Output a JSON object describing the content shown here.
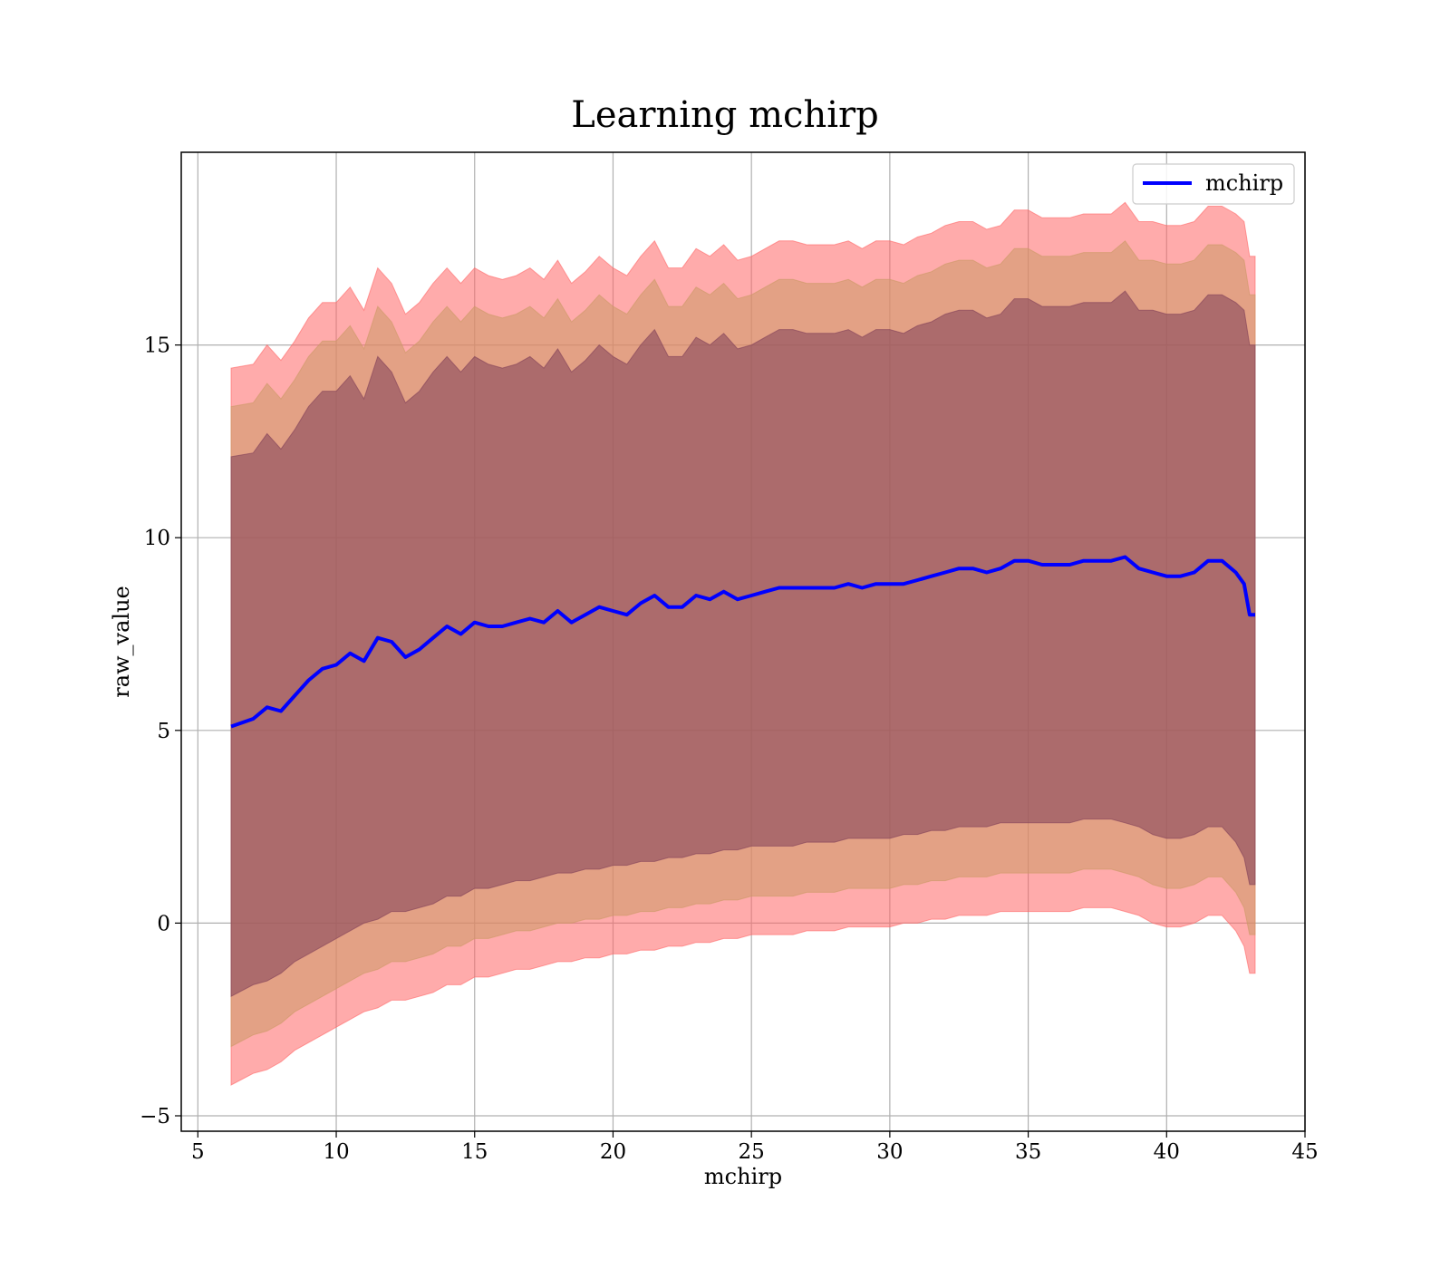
{
  "chart_data": {
    "type": "area",
    "title": "Learning mchirp",
    "xlabel": "mchirp",
    "ylabel": "raw_value",
    "xlim": [
      4.4,
      45
    ],
    "ylim": [
      -5.4,
      20
    ],
    "xticks": [
      5,
      10,
      15,
      20,
      25,
      30,
      35,
      40,
      45
    ],
    "yticks": [
      -5,
      0,
      5,
      10,
      15
    ],
    "xtick_labels": [
      "5",
      "10",
      "15",
      "20",
      "25",
      "30",
      "35",
      "40",
      "45"
    ],
    "ytick_labels": [
      "−5",
      "0",
      "5",
      "10",
      "15"
    ],
    "grid": true,
    "legend": {
      "placement": "top-right",
      "entries": [
        {
          "name": "mchirp",
          "color": "#0000ff"
        }
      ]
    },
    "x": [
      6.2,
      7.0,
      7.5,
      8.0,
      8.5,
      9.0,
      9.5,
      10.0,
      10.5,
      11.0,
      11.5,
      12.0,
      12.5,
      13.0,
      13.5,
      14.0,
      14.5,
      15.0,
      15.5,
      16.0,
      16.5,
      17.0,
      17.5,
      18.0,
      18.5,
      19.0,
      19.5,
      20.0,
      20.5,
      21.0,
      21.5,
      22.0,
      22.5,
      23.0,
      23.5,
      24.0,
      24.5,
      25.0,
      25.5,
      26.0,
      26.5,
      27.0,
      27.5,
      28.0,
      28.5,
      29.0,
      29.5,
      30.0,
      30.5,
      31.0,
      31.5,
      32.0,
      32.5,
      33.0,
      33.5,
      34.0,
      34.5,
      35.0,
      35.5,
      36.0,
      36.5,
      37.0,
      37.5,
      38.0,
      38.5,
      39.0,
      39.5,
      40.0,
      40.5,
      41.0,
      41.5,
      42.0,
      42.5,
      42.8,
      43.0,
      43.2
    ],
    "series": [
      {
        "name": "mchirp",
        "role": "mean",
        "color": "#0000ff",
        "values": [
          5.1,
          5.3,
          5.6,
          5.5,
          5.9,
          6.3,
          6.6,
          6.7,
          7.0,
          6.8,
          7.4,
          7.3,
          6.9,
          7.1,
          7.4,
          7.7,
          7.5,
          7.8,
          7.7,
          7.7,
          7.8,
          7.9,
          7.8,
          8.1,
          7.8,
          8.0,
          8.2,
          8.1,
          8.0,
          8.3,
          8.5,
          8.2,
          8.2,
          8.5,
          8.4,
          8.6,
          8.4,
          8.5,
          8.6,
          8.7,
          8.7,
          8.7,
          8.7,
          8.7,
          8.8,
          8.7,
          8.8,
          8.8,
          8.8,
          8.9,
          9.0,
          9.1,
          9.2,
          9.2,
          9.1,
          9.2,
          9.4,
          9.4,
          9.3,
          9.3,
          9.3,
          9.4,
          9.4,
          9.4,
          9.5,
          9.2,
          9.1,
          9.0,
          9.0,
          9.1,
          9.4,
          9.4,
          9.1,
          8.8,
          8.0,
          8.0
        ]
      }
    ],
    "bands": [
      {
        "level": "outer",
        "color": "#ff6666",
        "lower": [
          -4.2,
          -3.9,
          -3.8,
          -3.6,
          -3.3,
          -3.1,
          -2.9,
          -2.7,
          -2.5,
          -2.3,
          -2.2,
          -2.0,
          -2.0,
          -1.9,
          -1.8,
          -1.6,
          -1.6,
          -1.4,
          -1.4,
          -1.3,
          -1.2,
          -1.2,
          -1.1,
          -1.0,
          -1.0,
          -0.9,
          -0.9,
          -0.8,
          -0.8,
          -0.7,
          -0.7,
          -0.6,
          -0.6,
          -0.5,
          -0.5,
          -0.4,
          -0.4,
          -0.3,
          -0.3,
          -0.3,
          -0.3,
          -0.2,
          -0.2,
          -0.2,
          -0.1,
          -0.1,
          -0.1,
          -0.1,
          0.0,
          0.0,
          0.1,
          0.1,
          0.2,
          0.2,
          0.2,
          0.3,
          0.3,
          0.3,
          0.3,
          0.3,
          0.3,
          0.4,
          0.4,
          0.4,
          0.3,
          0.2,
          0.0,
          -0.1,
          -0.1,
          0.0,
          0.2,
          0.2,
          -0.2,
          -0.6,
          -1.3,
          -1.3
        ]
      },
      {
        "level": "middle",
        "color": "#cc9966",
        "lower": [
          -3.2,
          -2.9,
          -2.8,
          -2.6,
          -2.3,
          -2.1,
          -1.9,
          -1.7,
          -1.5,
          -1.3,
          -1.2,
          -1.0,
          -1.0,
          -0.9,
          -0.8,
          -0.6,
          -0.6,
          -0.4,
          -0.4,
          -0.3,
          -0.2,
          -0.2,
          -0.1,
          0.0,
          0.0,
          0.1,
          0.1,
          0.2,
          0.2,
          0.3,
          0.3,
          0.4,
          0.4,
          0.5,
          0.5,
          0.6,
          0.6,
          0.7,
          0.7,
          0.7,
          0.7,
          0.8,
          0.8,
          0.8,
          0.9,
          0.9,
          0.9,
          0.9,
          1.0,
          1.0,
          1.1,
          1.1,
          1.2,
          1.2,
          1.2,
          1.3,
          1.3,
          1.3,
          1.3,
          1.3,
          1.3,
          1.4,
          1.4,
          1.4,
          1.3,
          1.2,
          1.0,
          0.9,
          0.9,
          1.0,
          1.2,
          1.2,
          0.8,
          0.4,
          -0.3,
          -0.3
        ]
      },
      {
        "level": "inner",
        "color": "#804058",
        "lower": [
          -1.9,
          -1.6,
          -1.5,
          -1.3,
          -1.0,
          -0.8,
          -0.6,
          -0.4,
          -0.2,
          0.0,
          0.1,
          0.3,
          0.3,
          0.4,
          0.5,
          0.7,
          0.7,
          0.9,
          0.9,
          1.0,
          1.1,
          1.1,
          1.2,
          1.3,
          1.3,
          1.4,
          1.4,
          1.5,
          1.5,
          1.6,
          1.6,
          1.7,
          1.7,
          1.8,
          1.8,
          1.9,
          1.9,
          2.0,
          2.0,
          2.0,
          2.0,
          2.1,
          2.1,
          2.1,
          2.2,
          2.2,
          2.2,
          2.2,
          2.3,
          2.3,
          2.4,
          2.4,
          2.5,
          2.5,
          2.5,
          2.6,
          2.6,
          2.6,
          2.6,
          2.6,
          2.6,
          2.7,
          2.7,
          2.7,
          2.6,
          2.5,
          2.3,
          2.2,
          2.2,
          2.3,
          2.5,
          2.5,
          2.1,
          1.7,
          1.0,
          1.0
        ]
      }
    ]
  }
}
